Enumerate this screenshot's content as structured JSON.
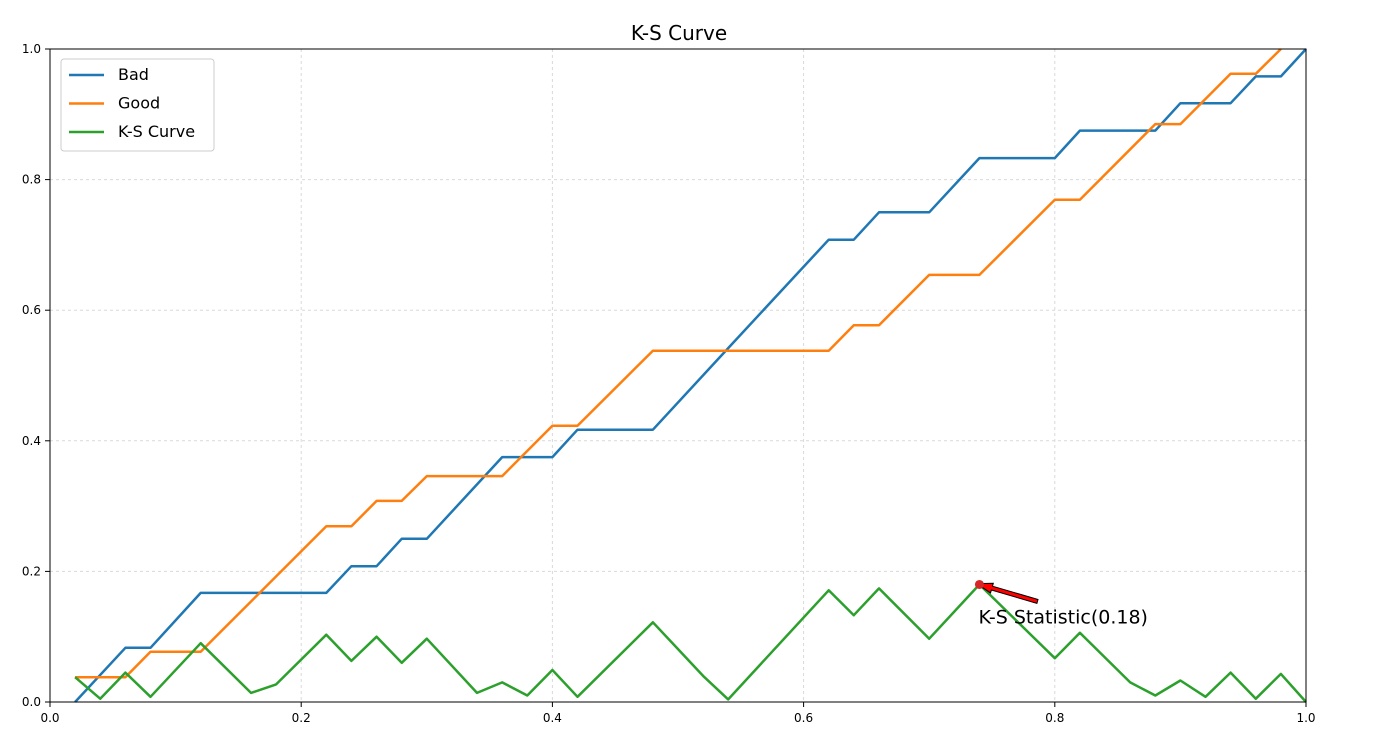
{
  "chart_data": {
    "type": "line",
    "title": "K-S Curve",
    "xlabel": "",
    "ylabel": "",
    "xlim": [
      0,
      1
    ],
    "ylim": [
      0,
      1
    ],
    "xticks": [
      "0.0",
      "0.2",
      "0.4",
      "0.6",
      "0.8",
      "1.0"
    ],
    "yticks": [
      "0.0",
      "0.2",
      "0.4",
      "0.6",
      "0.8",
      "1.0"
    ],
    "grid": true,
    "legend_position": "top-left",
    "series": [
      {
        "name": "Bad",
        "color": "#1f77b4",
        "points": [
          [
            0.02,
            0.0
          ],
          [
            0.06,
            0.083
          ],
          [
            0.08,
            0.083
          ],
          [
            0.12,
            0.167
          ],
          [
            0.22,
            0.167
          ],
          [
            0.24,
            0.208
          ],
          [
            0.26,
            0.208
          ],
          [
            0.28,
            0.25
          ],
          [
            0.3,
            0.25
          ],
          [
            0.36,
            0.375
          ],
          [
            0.4,
            0.375
          ],
          [
            0.42,
            0.417
          ],
          [
            0.48,
            0.417
          ],
          [
            0.54,
            0.542
          ],
          [
            0.62,
            0.708
          ],
          [
            0.64,
            0.708
          ],
          [
            0.66,
            0.75
          ],
          [
            0.7,
            0.75
          ],
          [
            0.74,
            0.833
          ],
          [
            0.8,
            0.833
          ],
          [
            0.82,
            0.875
          ],
          [
            0.88,
            0.875
          ],
          [
            0.9,
            0.917
          ],
          [
            0.94,
            0.917
          ],
          [
            0.96,
            0.958
          ],
          [
            0.98,
            0.958
          ],
          [
            1.0,
            1.0
          ]
        ]
      },
      {
        "name": "Good",
        "color": "#ff7f0e",
        "points": [
          [
            0.02,
            0.038
          ],
          [
            0.06,
            0.038
          ],
          [
            0.08,
            0.077
          ],
          [
            0.12,
            0.077
          ],
          [
            0.22,
            0.269
          ],
          [
            0.24,
            0.269
          ],
          [
            0.26,
            0.308
          ],
          [
            0.28,
            0.308
          ],
          [
            0.3,
            0.346
          ],
          [
            0.36,
            0.346
          ],
          [
            0.4,
            0.423
          ],
          [
            0.42,
            0.423
          ],
          [
            0.48,
            0.538
          ],
          [
            0.62,
            0.538
          ],
          [
            0.64,
            0.577
          ],
          [
            0.66,
            0.577
          ],
          [
            0.7,
            0.654
          ],
          [
            0.74,
            0.654
          ],
          [
            0.8,
            0.769
          ],
          [
            0.82,
            0.769
          ],
          [
            0.88,
            0.885
          ],
          [
            0.9,
            0.885
          ],
          [
            0.94,
            0.962
          ],
          [
            0.96,
            0.962
          ],
          [
            0.98,
            1.0
          ]
        ]
      },
      {
        "name": "K-S Curve",
        "color": "#2ca02c",
        "points": [
          [
            0.02,
            0.038
          ],
          [
            0.04,
            0.005
          ],
          [
            0.06,
            0.045
          ],
          [
            0.08,
            0.008
          ],
          [
            0.12,
            0.09
          ],
          [
            0.16,
            0.014
          ],
          [
            0.18,
            0.027
          ],
          [
            0.22,
            0.103
          ],
          [
            0.24,
            0.063
          ],
          [
            0.26,
            0.1
          ],
          [
            0.28,
            0.06
          ],
          [
            0.3,
            0.097
          ],
          [
            0.34,
            0.014
          ],
          [
            0.36,
            0.03
          ],
          [
            0.38,
            0.01
          ],
          [
            0.4,
            0.049
          ],
          [
            0.42,
            0.008
          ],
          [
            0.48,
            0.122
          ],
          [
            0.52,
            0.04
          ],
          [
            0.54,
            0.004
          ],
          [
            0.62,
            0.171
          ],
          [
            0.64,
            0.133
          ],
          [
            0.66,
            0.174
          ],
          [
            0.7,
            0.097
          ],
          [
            0.74,
            0.18
          ],
          [
            0.8,
            0.067
          ],
          [
            0.82,
            0.106
          ],
          [
            0.86,
            0.03
          ],
          [
            0.88,
            0.01
          ],
          [
            0.9,
            0.033
          ],
          [
            0.92,
            0.008
          ],
          [
            0.94,
            0.045
          ],
          [
            0.96,
            0.005
          ],
          [
            0.98,
            0.043
          ],
          [
            1.0,
            0.0
          ]
        ]
      }
    ],
    "annotation": {
      "text": "K-S Statistic(0.18)",
      "point": [
        0.74,
        0.18
      ],
      "marker_color": "#d62728",
      "arrow_color": "#ff0000"
    }
  }
}
